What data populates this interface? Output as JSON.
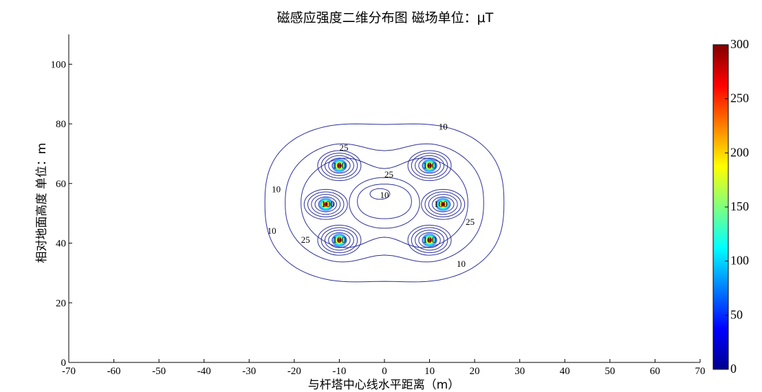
{
  "chart_data": {
    "type": "contour",
    "title": "磁感应强度二维分布图 磁场单位：μT",
    "xlabel": "与杆塔中心线水平距离（m）",
    "ylabel": "相对地面高度 单位：m",
    "xlim": [
      -70,
      70
    ],
    "ylim": [
      0,
      110
    ],
    "xticks": [
      "-70",
      "-60",
      "-50",
      "-40",
      "-30",
      "-20",
      "-10",
      "0",
      "10",
      "20",
      "30",
      "40",
      "50",
      "60",
      "70"
    ],
    "yticks": [
      "0",
      "20",
      "40",
      "60",
      "80",
      "100"
    ],
    "colorbar": {
      "range": [
        0,
        300
      ],
      "ticks": [
        "0",
        "50",
        "100",
        "150",
        "200",
        "250",
        "300"
      ],
      "colormap": "jet"
    },
    "conductors": [
      {
        "x": -10,
        "y": 66
      },
      {
        "x": 10,
        "y": 66
      },
      {
        "x": -13,
        "y": 53
      },
      {
        "x": 13,
        "y": 53
      },
      {
        "x": -10,
        "y": 41
      },
      {
        "x": 10,
        "y": 41
      }
    ],
    "contour_levels": [
      10,
      25
    ],
    "contour_labels": [
      {
        "text": "10",
        "x": 13,
        "y": 79
      },
      {
        "text": "10",
        "x": -24,
        "y": 58
      },
      {
        "text": "10",
        "x": -25,
        "y": 44
      },
      {
        "text": "10",
        "x": 17,
        "y": 33
      },
      {
        "text": "10",
        "x": 0,
        "y": 56
      },
      {
        "text": "25",
        "x": -9,
        "y": 72
      },
      {
        "text": "25",
        "x": 1,
        "y": 63
      },
      {
        "text": "25",
        "x": 19,
        "y": 47
      },
      {
        "text": "25",
        "x": -17.5,
        "y": 41
      },
      {
        "text": "100",
        "x": -10,
        "y": 66
      },
      {
        "text": "100",
        "x": 10,
        "y": 66
      },
      {
        "text": "100",
        "x": -12.5,
        "y": 53
      },
      {
        "text": "100",
        "x": 12.5,
        "y": 53
      },
      {
        "text": "100",
        "x": -10,
        "y": 41
      },
      {
        "text": "100",
        "x": 10,
        "y": 41
      }
    ],
    "colors": {
      "contour_line": "#2b2f9c",
      "axis": "#000000"
    }
  }
}
